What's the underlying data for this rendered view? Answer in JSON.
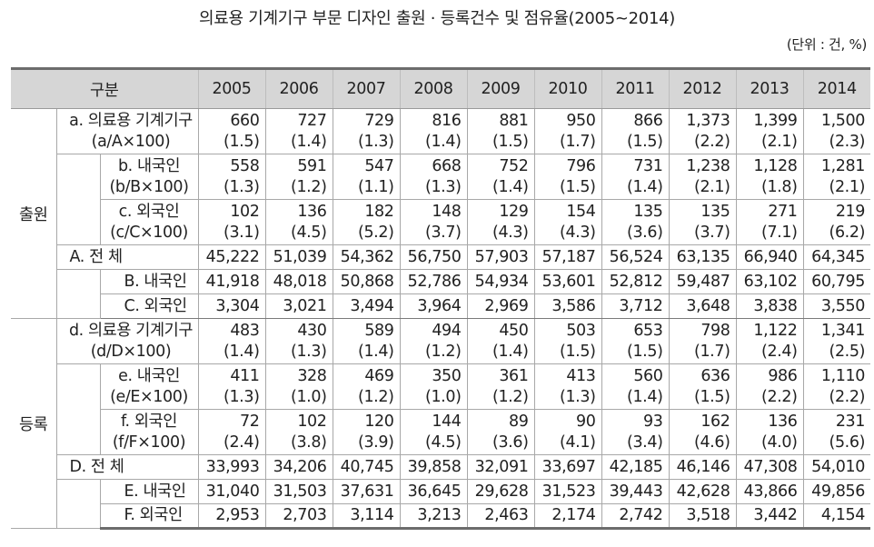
{
  "title": "의료용 기계기구 부문 디자인 출원 · 등록건수 및 점유율(2005~2014)",
  "unit": "(단위 : 건, %)",
  "header": {
    "category": "구분",
    "years": [
      "2005",
      "2006",
      "2007",
      "2008",
      "2009",
      "2010",
      "2011",
      "2012",
      "2013",
      "2014"
    ]
  },
  "application": {
    "group": "출원",
    "a": {
      "label": "a. 의료용 기계기구",
      "formula": "(a/A×100)",
      "values": [
        "660",
        "727",
        "729",
        "816",
        "881",
        "950",
        "866",
        "1,373",
        "1,399",
        "1,500"
      ],
      "shares": [
        "(1.5)",
        "(1.4)",
        "(1.3)",
        "(1.4)",
        "(1.5)",
        "(1.7)",
        "(1.5)",
        "(2.2)",
        "(2.1)",
        "(2.3)"
      ]
    },
    "b": {
      "label": "b. 내국인",
      "formula": "(b/B×100)",
      "values": [
        "558",
        "591",
        "547",
        "668",
        "752",
        "796",
        "731",
        "1,238",
        "1,128",
        "1,281"
      ],
      "shares": [
        "(1.3)",
        "(1.2)",
        "(1.1)",
        "(1.3)",
        "(1.4)",
        "(1.5)",
        "(1.4)",
        "(2.1)",
        "(1.8)",
        "(2.1)"
      ]
    },
    "c": {
      "label": "c. 외국인",
      "formula": "(c/C×100)",
      "values": [
        "102",
        "136",
        "182",
        "148",
        "129",
        "154",
        "135",
        "135",
        "271",
        "219"
      ],
      "shares": [
        "(3.1)",
        "(4.5)",
        "(5.2)",
        "(3.7)",
        "(4.3)",
        "(4.3)",
        "(3.6)",
        "(3.7)",
        "(7.1)",
        "(6.2)"
      ]
    },
    "A": {
      "label": "A. 전 체",
      "values": [
        "45,222",
        "51,039",
        "54,362",
        "56,750",
        "57,903",
        "57,187",
        "56,524",
        "63,135",
        "66,940",
        "64,345"
      ]
    },
    "B": {
      "label": "B. 내국인",
      "values": [
        "41,918",
        "48,018",
        "50,868",
        "52,786",
        "54,934",
        "53,601",
        "52,812",
        "59,487",
        "63,102",
        "60,795"
      ]
    },
    "C": {
      "label": "C. 외국인",
      "values": [
        "3,304",
        "3,021",
        "3,494",
        "3,964",
        "2,969",
        "3,586",
        "3,712",
        "3,648",
        "3,838",
        "3,550"
      ]
    }
  },
  "registration": {
    "group": "등록",
    "d": {
      "label": "d. 의료용 기계기구",
      "formula": "(d/D×100)",
      "values": [
        "483",
        "430",
        "589",
        "494",
        "450",
        "503",
        "653",
        "798",
        "1,122",
        "1,341"
      ],
      "shares": [
        "(1.4)",
        "(1.3)",
        "(1.4)",
        "(1.2)",
        "(1.4)",
        "(1.5)",
        "(1.5)",
        "(1.7)",
        "(2.4)",
        "(2.5)"
      ]
    },
    "e": {
      "label": "e. 내국인",
      "formula": "(e/E×100)",
      "values": [
        "411",
        "328",
        "469",
        "350",
        "361",
        "413",
        "560",
        "636",
        "986",
        "1,110"
      ],
      "shares": [
        "(1.3)",
        "(1.0)",
        "(1.2)",
        "(1.0)",
        "(1.2)",
        "(1.3)",
        "(1.4)",
        "(1.5)",
        "(2.2)",
        "(2.2)"
      ]
    },
    "f": {
      "label": "f. 외국인",
      "formula": "(f/F×100)",
      "values": [
        "72",
        "102",
        "120",
        "144",
        "89",
        "90",
        "93",
        "162",
        "136",
        "231"
      ],
      "shares": [
        "(2.4)",
        "(3.8)",
        "(3.9)",
        "(4.5)",
        "(3.6)",
        "(4.1)",
        "(3.4)",
        "(4.6)",
        "(4.0)",
        "(5.6)"
      ]
    },
    "D": {
      "label": "D. 전 체",
      "values": [
        "33,993",
        "34,206",
        "40,745",
        "39,858",
        "32,091",
        "33,697",
        "42,185",
        "46,146",
        "47,308",
        "54,010"
      ]
    },
    "E": {
      "label": "E. 내국인",
      "values": [
        "31,040",
        "31,503",
        "37,631",
        "36,645",
        "29,628",
        "31,523",
        "39,443",
        "42,628",
        "43,866",
        "49,856"
      ]
    },
    "F": {
      "label": "F. 외국인",
      "values": [
        "2,953",
        "2,703",
        "3,114",
        "3,213",
        "2,463",
        "2,174",
        "2,742",
        "3,518",
        "3,442",
        "4,154"
      ]
    }
  }
}
